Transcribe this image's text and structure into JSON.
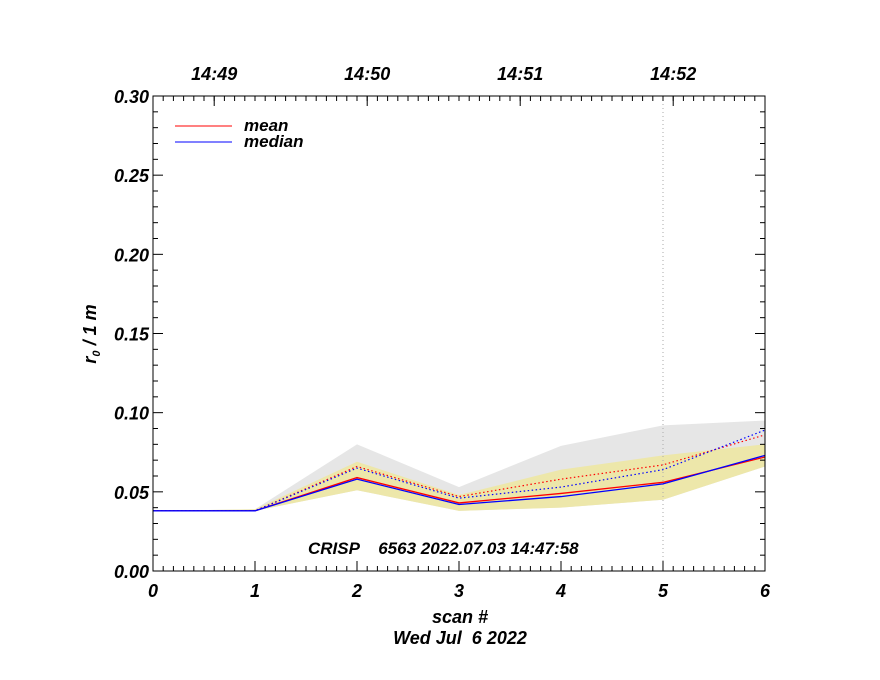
{
  "chart_data": {
    "type": "line",
    "xlabel": "scan #",
    "ylabel_main": "r",
    "ylabel_sub": "0",
    "ylabel_rest": " / 1 m",
    "date_label": "Wed Jul  6 2022",
    "annotation": "CRISP    6563 2022.07.03 14:47:58",
    "xlim": [
      0,
      6
    ],
    "ylim": [
      0,
      0.3
    ],
    "x_ticks": [
      "0",
      "1",
      "2",
      "3",
      "4",
      "5",
      "6"
    ],
    "y_ticks": [
      "0.00",
      "0.05",
      "0.10",
      "0.15",
      "0.20",
      "0.25",
      "0.30"
    ],
    "y_tick_values": [
      0,
      0.05,
      0.1,
      0.15,
      0.2,
      0.25,
      0.3
    ],
    "top_axis": {
      "ticks": [
        {
          "label": "14:49",
          "x": 0.6
        },
        {
          "label": "14:50",
          "x": 2.1
        },
        {
          "label": "14:51",
          "x": 3.6
        },
        {
          "label": "14:52",
          "x": 5.1
        }
      ]
    },
    "x": [
      0,
      1,
      2,
      3,
      4,
      5,
      6
    ],
    "envelopes": [
      {
        "color": "#e6e6e6",
        "upper": [
          0.038,
          0.039,
          0.08,
          0.053,
          0.079,
          0.092,
          0.095
        ],
        "lower": [
          0.038,
          0.038,
          0.051,
          0.038,
          0.04,
          0.045,
          0.066
        ]
      },
      {
        "color": "#ede7aa",
        "upper": [
          0.038,
          0.039,
          0.069,
          0.048,
          0.064,
          0.073,
          0.08
        ],
        "lower": [
          0.038,
          0.038,
          0.051,
          0.038,
          0.04,
          0.045,
          0.066
        ]
      }
    ],
    "series": [
      {
        "name": "mean",
        "color": "#ff0000",
        "dash": false,
        "values": [
          0.038,
          0.038,
          0.059,
          0.043,
          0.049,
          0.056,
          0.072
        ]
      },
      {
        "color": "#ff0000",
        "dash": true,
        "values": [
          0.038,
          0.038,
          0.066,
          0.047,
          0.058,
          0.067,
          0.086
        ]
      },
      {
        "name": "median",
        "color": "#0000ff",
        "dash": false,
        "values": [
          0.038,
          0.038,
          0.058,
          0.042,
          0.047,
          0.055,
          0.073
        ]
      },
      {
        "color": "#0000ff",
        "dash": true,
        "values": [
          0.038,
          0.038,
          0.065,
          0.046,
          0.053,
          0.064,
          0.089
        ]
      }
    ],
    "vline": {
      "x": 5,
      "color": "#aaaaaa"
    },
    "legend": [
      {
        "label": "mean",
        "color": "#ff0000"
      },
      {
        "label": "median",
        "color": "#0000ff"
      }
    ],
    "legend_position": "top-left"
  }
}
